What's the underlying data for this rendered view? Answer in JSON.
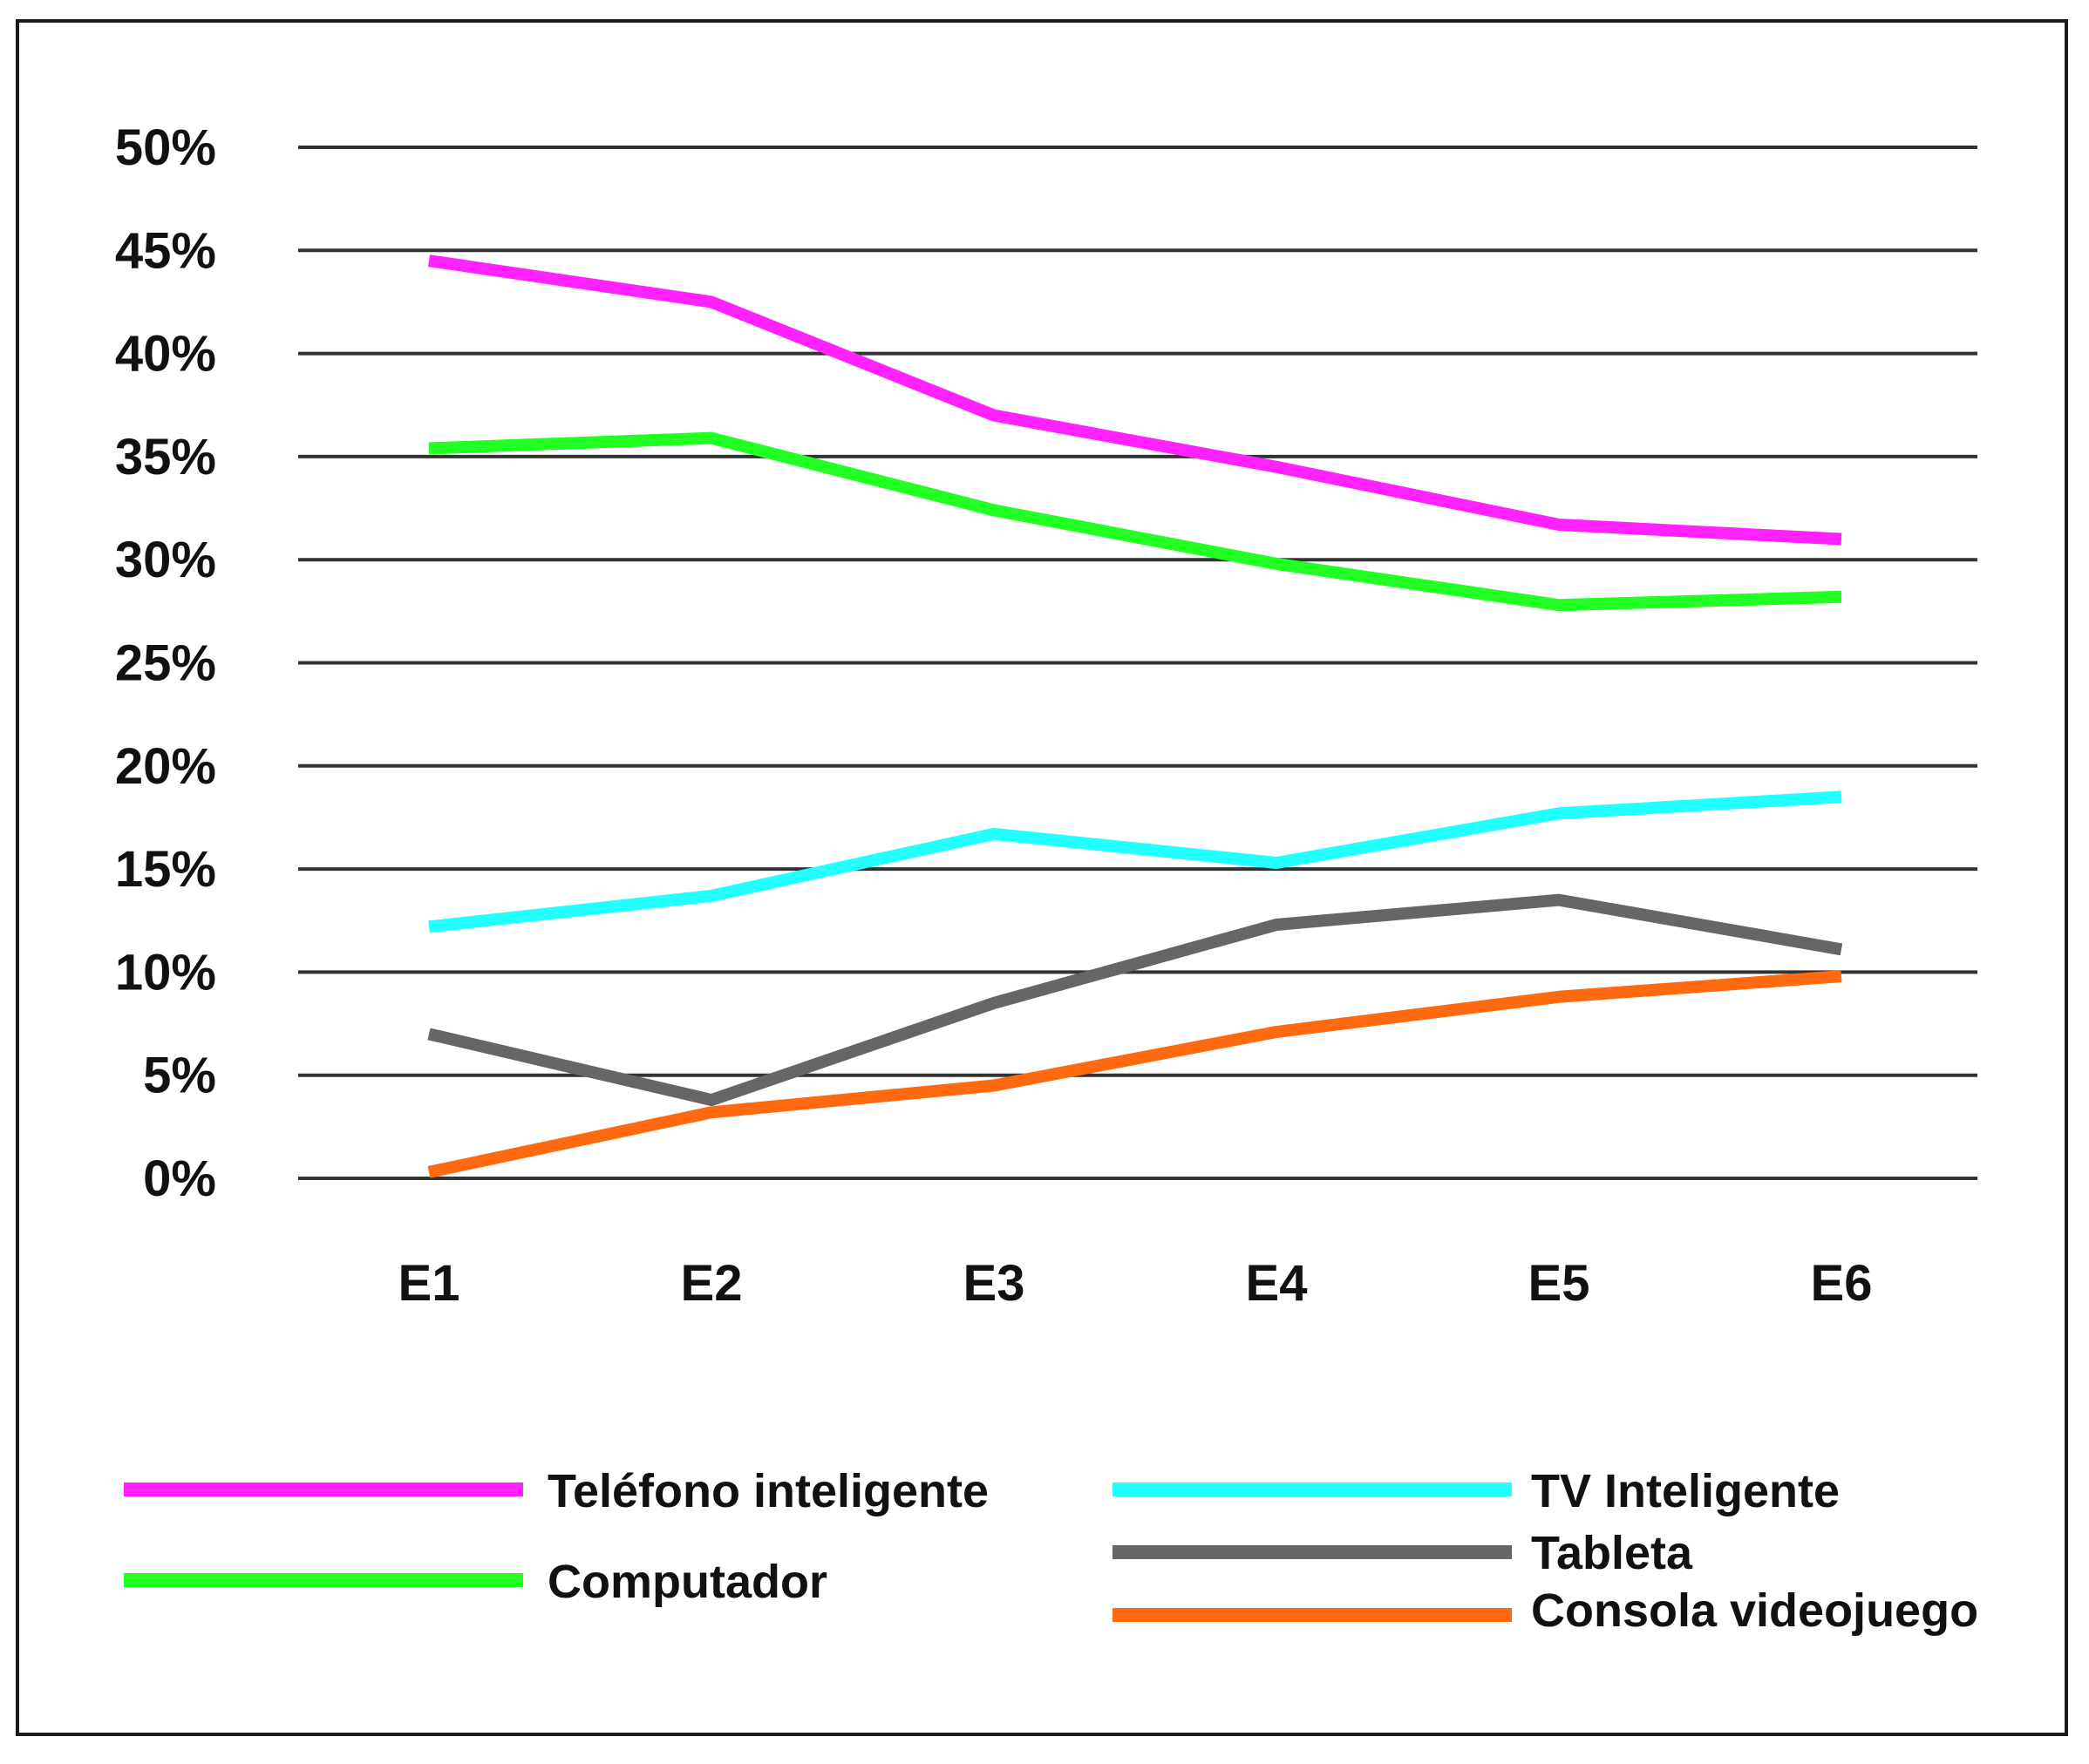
{
  "chart_data": {
    "type": "line",
    "title": "",
    "xlabel": "",
    "ylabel": "",
    "categories": [
      "E1",
      "E2",
      "E3",
      "E4",
      "E5",
      "E6"
    ],
    "y_ticks": [
      "0%",
      "5%",
      "10%",
      "15%",
      "20%",
      "25%",
      "30%",
      "35%",
      "40%",
      "45%",
      "50%"
    ],
    "ylim": [
      0,
      50
    ],
    "grid": "horizontal",
    "legend_position": "bottom",
    "series": [
      {
        "name": "Teléfono inteligente",
        "color": "#ff22ff",
        "values": [
          44.5,
          42.5,
          37.0,
          34.5,
          31.7,
          31.0
        ]
      },
      {
        "name": "Computador",
        "color": "#22ff22",
        "values": [
          35.4,
          35.9,
          32.4,
          29.8,
          27.8,
          28.2
        ]
      },
      {
        "name": "TV Inteligente",
        "color": "#22ffff",
        "values": [
          12.2,
          13.7,
          16.7,
          15.3,
          17.7,
          18.5
        ]
      },
      {
        "name": "Tableta",
        "color": "#666666",
        "values": [
          7.0,
          3.8,
          8.5,
          12.3,
          13.5,
          11.1
        ]
      },
      {
        "name": "Consola videojuego",
        "color": "#ff6a11",
        "values": [
          0.3,
          3.2,
          4.5,
          7.1,
          8.8,
          9.8
        ]
      }
    ]
  }
}
